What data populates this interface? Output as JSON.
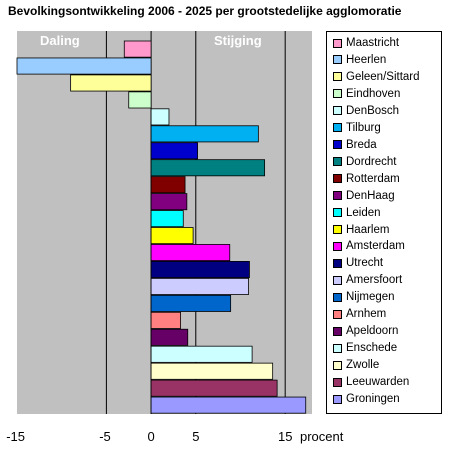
{
  "title": "Bevolkingsontwikkeling 2006 - 2025 per grootstedelijke agglomoratie",
  "regions": {
    "left": "Daling",
    "right": "Stijging"
  },
  "colors": {
    "plot_background": "#c0c0c0",
    "gridline": "#000000"
  },
  "chart_data": {
    "type": "bar",
    "orientation": "horizontal",
    "title": "Bevolkingsontwikkeling 2006 - 2025 per grootstedelijke agglomoratie",
    "xlabel": "procent",
    "xlim": [
      -15,
      18
    ],
    "x_ticks": [
      "-15",
      "-5",
      "0",
      "5",
      "15"
    ],
    "x_tick_values": [
      -15,
      -5,
      0,
      5,
      15
    ],
    "x_unit_label": "procent",
    "grid": true,
    "legend_position": "right",
    "categories": [
      "Maastricht",
      "Heerlen",
      "Geleen/Sittard",
      "Eindhoven",
      "DenBosch",
      "Tilburg",
      "Breda",
      "Dordrecht",
      "Rotterdam",
      "DenHaag",
      "Leiden",
      "Haarlem",
      "Amsterdam",
      "Utrecht",
      "Amersfoort",
      "Nijmegen",
      "Arnhem",
      "Apeldoorn",
      "Enschede",
      "Zwolle",
      "Leeuwarden",
      "Groningen"
    ],
    "values": [
      -3.0,
      -15.0,
      -9.0,
      -2.5,
      2.0,
      12.0,
      5.2,
      12.7,
      3.8,
      4.0,
      3.6,
      4.7,
      8.8,
      11.0,
      10.9,
      8.9,
      3.3,
      4.1,
      11.3,
      13.6,
      14.1,
      17.3
    ],
    "colors": [
      "#ff99cc",
      "#99ccff",
      "#ffff99",
      "#ccffcc",
      "#ccffff",
      "#00b0f0",
      "#0000cc",
      "#008080",
      "#800000",
      "#800080",
      "#00ffff",
      "#ffff00",
      "#ff00ff",
      "#000080",
      "#ccccff",
      "#0066cc",
      "#ff8080",
      "#660066",
      "#ccffff",
      "#ffffcc",
      "#993366",
      "#9999ff"
    ]
  }
}
